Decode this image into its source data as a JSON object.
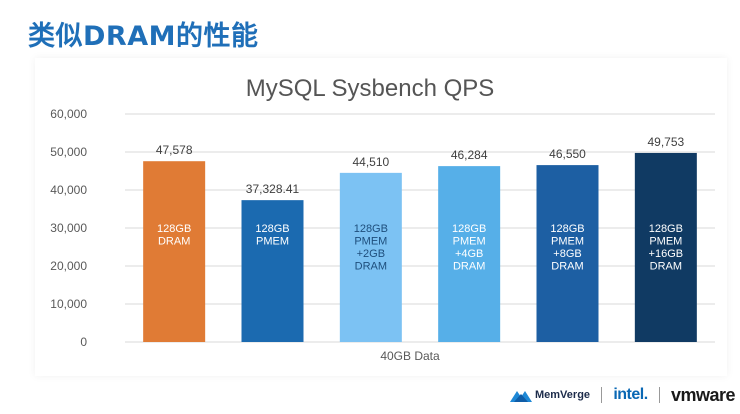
{
  "slide": {
    "title": "类似DRAM的性能"
  },
  "logos": {
    "memverge": "MemVerge",
    "intel": "intel.",
    "vmware": "vmware"
  },
  "colors": {
    "title": "#1f6fb8",
    "bars": [
      "#e07b35",
      "#1b6ab0",
      "#7cc2f3",
      "#56afe8",
      "#1d5fa3",
      "#103a63"
    ]
  },
  "chart_data": {
    "type": "bar",
    "title": "MySQL Sysbench QPS",
    "xlabel": "40GB Data",
    "ylabel": "",
    "ylim": [
      0,
      60000
    ],
    "yticks": [
      "0",
      "10,000",
      "20,000",
      "30,000",
      "40,000",
      "50,000",
      "60,000"
    ],
    "grid": true,
    "series": [
      {
        "name": "128GB DRAM",
        "value": 47578,
        "value_label": "47,578",
        "inner_label": [
          "128GB",
          "DRAM"
        ]
      },
      {
        "name": "128GB PMEM",
        "value": 37328.41,
        "value_label": "37,328.41",
        "inner_label": [
          "128GB",
          "PMEM"
        ]
      },
      {
        "name": "128GB PMEM +2GB DRAM",
        "value": 44510,
        "value_label": "44,510",
        "inner_label": [
          "128GB",
          "PMEM",
          "+2GB",
          "DRAM"
        ]
      },
      {
        "name": "128GB PMEM +4GB DRAM",
        "value": 46284,
        "value_label": "46,284",
        "inner_label": [
          "128GB",
          "PMEM",
          "+4GB",
          "DRAM"
        ]
      },
      {
        "name": "128GB PMEM +8GB DRAM",
        "value": 46550,
        "value_label": "46,550",
        "inner_label": [
          "128GB",
          "PMEM",
          "+8GB",
          "DRAM"
        ]
      },
      {
        "name": "128GB PMEM +16GB DRAM",
        "value": 49753,
        "value_label": "49,753",
        "inner_label": [
          "128GB",
          "PMEM",
          "+16GB",
          "DRAM"
        ]
      }
    ]
  }
}
